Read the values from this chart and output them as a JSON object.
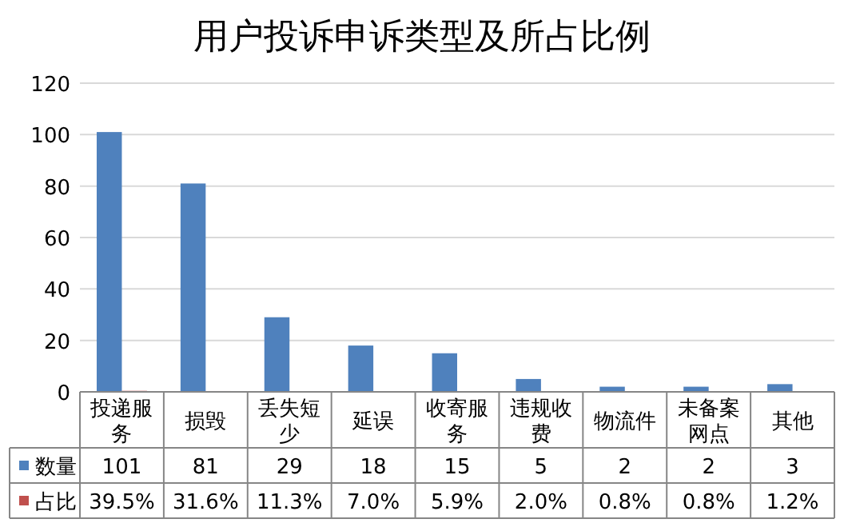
{
  "chart_data": {
    "type": "bar",
    "title": "用户投诉申诉类型及所占比例",
    "categories": [
      "投递服务",
      "损毁",
      "丢失短少",
      "延误",
      "收寄服务",
      "违规收费",
      "物流件",
      "未备案网点",
      "其他"
    ],
    "series": [
      {
        "name": "数量",
        "color": "#4f81bd",
        "values": [
          101,
          81,
          29,
          18,
          15,
          5,
          2,
          2,
          3
        ],
        "value_labels": [
          "101",
          "81",
          "29",
          "18",
          "15",
          "5",
          "2",
          "2",
          "3"
        ]
      },
      {
        "name": "占比",
        "color": "#c0504d",
        "values": [
          0.395,
          0.316,
          0.113,
          0.07,
          0.059,
          0.02,
          0.008,
          0.008,
          0.012
        ],
        "value_labels": [
          "39.5%",
          "31.6%",
          "11.3%",
          "7.0%",
          "5.9%",
          "2.0%",
          "0.8%",
          "0.8%",
          "1.2%"
        ]
      }
    ],
    "ylim": [
      0,
      120
    ],
    "yticks": [
      0,
      20,
      40,
      60,
      80,
      100,
      120
    ],
    "grid": "y",
    "legend": "bottom"
  }
}
